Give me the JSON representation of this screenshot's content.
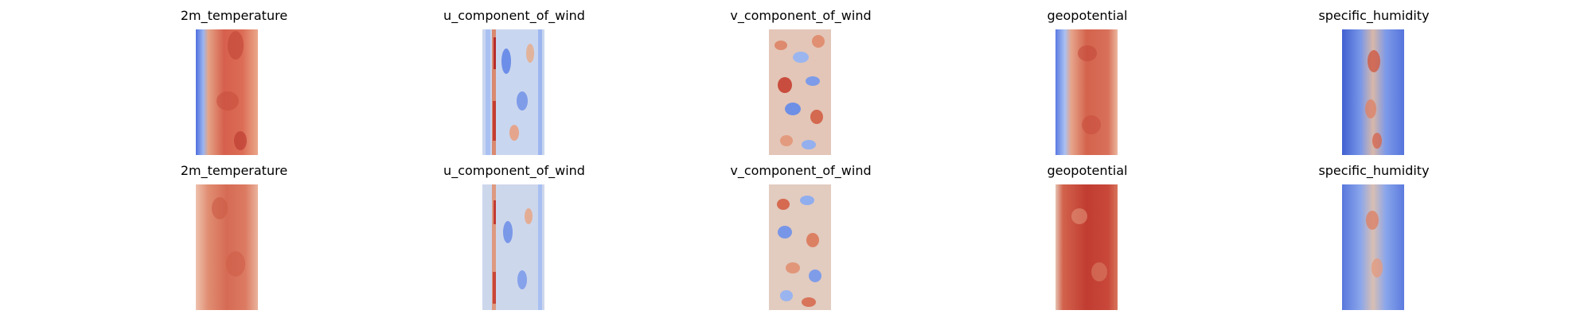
{
  "figure": {
    "colormap": "coolwarm",
    "colors": {
      "cold": "#3b4cc0",
      "neutral": "#dddddd",
      "warm": "#b40426"
    }
  },
  "rows": [
    {
      "panels": [
        {
          "title": "2m_temperature"
        },
        {
          "title": "u_component_of_wind"
        },
        {
          "title": "v_component_of_wind"
        },
        {
          "title": "geopotential"
        },
        {
          "title": "specific_humidity"
        }
      ]
    },
    {
      "panels": [
        {
          "title": "2m_temperature"
        },
        {
          "title": "u_component_of_wind"
        },
        {
          "title": "v_component_of_wind"
        },
        {
          "title": "geopotential"
        },
        {
          "title": "specific_humidity"
        }
      ]
    }
  ],
  "chart_data": {
    "type": "heatmap",
    "layout": "2 rows x 5 columns of image panels, axes hidden",
    "colormap": "coolwarm",
    "grid": false,
    "panels": [
      {
        "row": 0,
        "title": "2m_temperature",
        "pattern": "mostly warm (red), cold strip along left edge"
      },
      {
        "row": 0,
        "title": "u_component_of_wind",
        "pattern": "mixed, mostly light blue with red streaks"
      },
      {
        "row": 0,
        "title": "v_component_of_wind",
        "pattern": "mixed red and blue swirls"
      },
      {
        "row": 0,
        "title": "geopotential",
        "pattern": "mostly warm (red), cold strip along left edge"
      },
      {
        "row": 0,
        "title": "specific_humidity",
        "pattern": "mostly cold (blue), warm band in center"
      },
      {
        "row": 1,
        "title": "2m_temperature",
        "pattern": "mostly warm (red), lighter toward edges"
      },
      {
        "row": 1,
        "title": "u_component_of_wind",
        "pattern": "mixed, mostly light blue with red streaks"
      },
      {
        "row": 1,
        "title": "v_component_of_wind",
        "pattern": "mixed red and blue swirls"
      },
      {
        "row": 1,
        "title": "geopotential",
        "pattern": "mostly warm (deep red), light strip left edge"
      },
      {
        "row": 1,
        "title": "specific_humidity",
        "pattern": "mostly cold (blue), warmer band in center"
      }
    ]
  }
}
